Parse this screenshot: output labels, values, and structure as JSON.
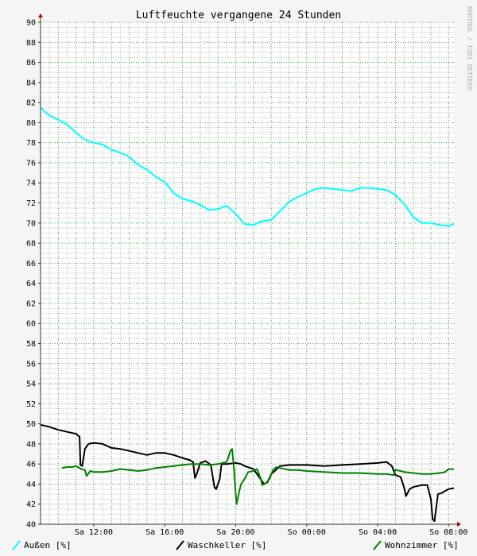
{
  "chart_data": {
    "type": "line",
    "title": "Luftfeuchte vergangene 24 Stunden",
    "watermark": "RRDTOOL / TOBI OETIKER",
    "xlabel": "",
    "ylabel": "",
    "ylim": [
      40,
      90
    ],
    "xlim": [
      9.0,
      32.3
    ],
    "x_ticks": [
      {
        "x": 12,
        "label": "Sa 12:00"
      },
      {
        "x": 16,
        "label": "Sa 16:00"
      },
      {
        "x": 20,
        "label": "Sa 20:00"
      },
      {
        "x": 24,
        "label": "So 00:00"
      },
      {
        "x": 28,
        "label": "So 04:00"
      },
      {
        "x": 32,
        "label": "So 08:00"
      }
    ],
    "y_ticks": [
      40,
      42,
      44,
      46,
      48,
      50,
      52,
      54,
      56,
      58,
      60,
      62,
      64,
      66,
      68,
      70,
      72,
      74,
      76,
      78,
      80,
      82,
      84,
      86,
      88,
      90
    ],
    "grid": true,
    "legend_position": "bottom",
    "series": [
      {
        "name": "Außen [%]",
        "color": "#00ffff",
        "points": [
          [
            9.0,
            81.5
          ],
          [
            9.3,
            81.0
          ],
          [
            9.6,
            80.6
          ],
          [
            10.0,
            80.3
          ],
          [
            10.5,
            79.8
          ],
          [
            11.0,
            79.0
          ],
          [
            11.5,
            78.3
          ],
          [
            12.0,
            78.0
          ],
          [
            12.5,
            77.8
          ],
          [
            13.0,
            77.3
          ],
          [
            13.5,
            77.0
          ],
          [
            14.0,
            76.6
          ],
          [
            14.5,
            75.8
          ],
          [
            15.0,
            75.3
          ],
          [
            15.5,
            74.6
          ],
          [
            16.0,
            74.1
          ],
          [
            16.5,
            73.0
          ],
          [
            17.0,
            72.4
          ],
          [
            17.5,
            72.2
          ],
          [
            18.0,
            71.8
          ],
          [
            18.5,
            71.3
          ],
          [
            19.0,
            71.4
          ],
          [
            19.5,
            71.7
          ],
          [
            20.0,
            70.9
          ],
          [
            20.5,
            69.9
          ],
          [
            21.0,
            69.8
          ],
          [
            21.5,
            70.2
          ],
          [
            22.0,
            70.3
          ],
          [
            22.5,
            71.2
          ],
          [
            23.0,
            72.1
          ],
          [
            23.5,
            72.6
          ],
          [
            24.0,
            73.0
          ],
          [
            24.5,
            73.4
          ],
          [
            25.0,
            73.5
          ],
          [
            25.5,
            73.4
          ],
          [
            26.0,
            73.3
          ],
          [
            26.5,
            73.2
          ],
          [
            27.0,
            73.5
          ],
          [
            27.5,
            73.5
          ],
          [
            28.0,
            73.4
          ],
          [
            28.5,
            73.3
          ],
          [
            29.0,
            72.8
          ],
          [
            29.5,
            71.9
          ],
          [
            30.0,
            70.6
          ],
          [
            30.5,
            70.0
          ],
          [
            31.0,
            70.0
          ],
          [
            31.5,
            69.8
          ],
          [
            32.0,
            69.7
          ],
          [
            32.3,
            69.9
          ]
        ]
      },
      {
        "name": "Waschkeller [%]",
        "color": "#000000",
        "points": [
          [
            9.0,
            49.9
          ],
          [
            9.5,
            49.7
          ],
          [
            10.0,
            49.4
          ],
          [
            10.5,
            49.2
          ],
          [
            11.0,
            49.0
          ],
          [
            11.2,
            48.7
          ],
          [
            11.25,
            45.9
          ],
          [
            11.35,
            45.8
          ],
          [
            11.5,
            47.5
          ],
          [
            11.7,
            48.0
          ],
          [
            12.0,
            48.1
          ],
          [
            12.5,
            48.0
          ],
          [
            13.0,
            47.6
          ],
          [
            13.5,
            47.5
          ],
          [
            14.0,
            47.3
          ],
          [
            14.5,
            47.1
          ],
          [
            15.0,
            46.9
          ],
          [
            15.5,
            47.1
          ],
          [
            16.0,
            47.1
          ],
          [
            16.5,
            46.9
          ],
          [
            17.0,
            46.6
          ],
          [
            17.4,
            46.4
          ],
          [
            17.6,
            46.2
          ],
          [
            17.7,
            44.6
          ],
          [
            17.8,
            45.0
          ],
          [
            18.0,
            46.1
          ],
          [
            18.3,
            46.3
          ],
          [
            18.6,
            45.9
          ],
          [
            18.8,
            43.7
          ],
          [
            18.9,
            43.5
          ],
          [
            19.1,
            44.5
          ],
          [
            19.2,
            46.0
          ],
          [
            19.5,
            46.0
          ],
          [
            20.0,
            46.1
          ],
          [
            20.3,
            46.0
          ],
          [
            20.5,
            45.8
          ],
          [
            21.0,
            45.5
          ],
          [
            21.4,
            44.5
          ],
          [
            21.6,
            44.0
          ],
          [
            21.8,
            44.2
          ],
          [
            22.0,
            45.0
          ],
          [
            22.2,
            45.3
          ],
          [
            22.5,
            45.8
          ],
          [
            23.0,
            45.9
          ],
          [
            24.0,
            45.9
          ],
          [
            25.0,
            45.8
          ],
          [
            26.0,
            45.9
          ],
          [
            27.0,
            46.0
          ],
          [
            28.0,
            46.1
          ],
          [
            28.5,
            46.2
          ],
          [
            28.8,
            45.8
          ],
          [
            29.0,
            44.9
          ],
          [
            29.3,
            44.7
          ],
          [
            29.5,
            43.6
          ],
          [
            29.6,
            42.8
          ],
          [
            29.8,
            43.5
          ],
          [
            30.0,
            43.7
          ],
          [
            30.5,
            43.9
          ],
          [
            30.8,
            43.9
          ],
          [
            31.0,
            42.5
          ],
          [
            31.1,
            40.5
          ],
          [
            31.2,
            40.3
          ],
          [
            31.4,
            43.0
          ],
          [
            31.6,
            43.1
          ],
          [
            31.8,
            43.3
          ],
          [
            32.0,
            43.5
          ],
          [
            32.3,
            43.6
          ]
        ]
      },
      {
        "name": "Wohnzimmer [%]",
        "color": "#008000",
        "points": [
          [
            10.2,
            45.6
          ],
          [
            10.5,
            45.7
          ],
          [
            10.8,
            45.7
          ],
          [
            11.0,
            45.8
          ],
          [
            11.3,
            45.5
          ],
          [
            11.5,
            45.4
          ],
          [
            11.6,
            44.8
          ],
          [
            11.8,
            45.3
          ],
          [
            12.0,
            45.2
          ],
          [
            12.5,
            45.2
          ],
          [
            13.0,
            45.3
          ],
          [
            13.5,
            45.5
          ],
          [
            14.0,
            45.4
          ],
          [
            14.5,
            45.3
          ],
          [
            15.0,
            45.4
          ],
          [
            15.5,
            45.6
          ],
          [
            16.0,
            45.7
          ],
          [
            16.5,
            45.8
          ],
          [
            17.0,
            45.9
          ],
          [
            17.5,
            46.0
          ],
          [
            18.0,
            46.0
          ],
          [
            18.5,
            45.9
          ],
          [
            19.0,
            46.0
          ],
          [
            19.5,
            46.2
          ],
          [
            19.7,
            47.3
          ],
          [
            19.8,
            47.5
          ],
          [
            19.9,
            45.5
          ],
          [
            20.0,
            43.0
          ],
          [
            20.05,
            42.0
          ],
          [
            20.2,
            43.3
          ],
          [
            20.3,
            44.0
          ],
          [
            20.5,
            44.5
          ],
          [
            20.7,
            45.2
          ],
          [
            21.0,
            45.3
          ],
          [
            21.2,
            45.5
          ],
          [
            21.4,
            44.6
          ],
          [
            21.5,
            43.9
          ],
          [
            21.7,
            44.1
          ],
          [
            21.9,
            44.5
          ],
          [
            22.1,
            45.4
          ],
          [
            22.3,
            45.7
          ],
          [
            22.5,
            45.6
          ],
          [
            23.0,
            45.4
          ],
          [
            23.5,
            45.4
          ],
          [
            24.0,
            45.3
          ],
          [
            25.0,
            45.2
          ],
          [
            26.0,
            45.1
          ],
          [
            27.0,
            45.1
          ],
          [
            28.0,
            45.0
          ],
          [
            28.5,
            45.0
          ],
          [
            28.9,
            44.9
          ],
          [
            29.0,
            45.4
          ],
          [
            29.3,
            45.3
          ],
          [
            29.5,
            45.2
          ],
          [
            30.0,
            45.1
          ],
          [
            30.5,
            45.0
          ],
          [
            31.0,
            45.0
          ],
          [
            31.5,
            45.1
          ],
          [
            31.8,
            45.2
          ],
          [
            32.0,
            45.5
          ],
          [
            32.3,
            45.5
          ]
        ]
      }
    ]
  }
}
